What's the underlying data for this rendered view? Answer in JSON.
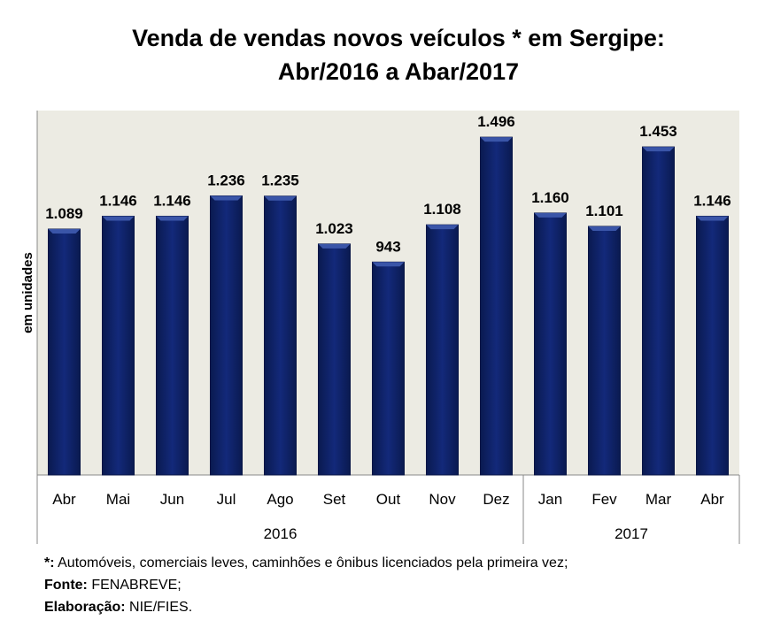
{
  "chart_data": {
    "type": "bar",
    "title_line1": "Venda de vendas novos veículos * em Sergipe:",
    "title_line2": "Abr/2016 a Abar/2017",
    "ylabel": "em unidades",
    "xlabel": "",
    "categories": [
      "Abr",
      "Mai",
      "Jun",
      "Jul",
      "Ago",
      "Set",
      "Out",
      "Nov",
      "Dez",
      "Jan",
      "Fev",
      "Mar",
      "Abr"
    ],
    "values": [
      1089,
      1146,
      1146,
      1236,
      1235,
      1023,
      943,
      1108,
      1496,
      1160,
      1101,
      1453,
      1146
    ],
    "data_labels": [
      "1.089",
      "1.146",
      "1.146",
      "1.236",
      "1.235",
      "1.023",
      "943",
      "1.108",
      "1.496",
      "1.160",
      "1.101",
      "1.453",
      "1.146"
    ],
    "groups": [
      {
        "label": "2016",
        "count": 9
      },
      {
        "label": "2017",
        "count": 4
      }
    ],
    "ylim": [
      0,
      1614
    ],
    "grid": false,
    "legend": "none",
    "colors": {
      "bar": "#0f2466",
      "plot_bg": "#ecebe3"
    }
  },
  "notes": {
    "note1_key": "*:",
    "note1_text": " Automóveis, comerciais leves, caminhões e ônibus licenciados pela primeira vez;",
    "note2_key": "Fonte:",
    "note2_text": " FENABREVE;",
    "note3_key": "Elaboração:",
    "note3_text": " NIE/FIES."
  }
}
